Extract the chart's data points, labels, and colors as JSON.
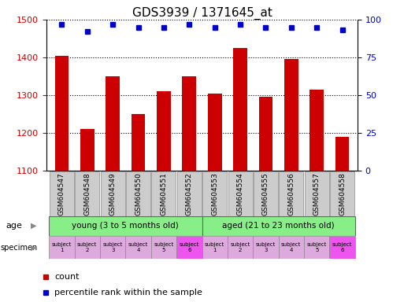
{
  "title": "GDS3939 / 1371645_at",
  "samples": [
    "GSM604547",
    "GSM604548",
    "GSM604549",
    "GSM604550",
    "GSM604551",
    "GSM604552",
    "GSM604553",
    "GSM604554",
    "GSM604555",
    "GSM604556",
    "GSM604557",
    "GSM604558"
  ],
  "counts": [
    1405,
    1210,
    1350,
    1250,
    1310,
    1350,
    1305,
    1425,
    1295,
    1395,
    1315,
    1190
  ],
  "percentiles": [
    97,
    92,
    97,
    95,
    95,
    97,
    95,
    97,
    95,
    95,
    95,
    93
  ],
  "ylim_left": [
    1100,
    1500
  ],
  "ylim_right": [
    0,
    100
  ],
  "yticks_left": [
    1100,
    1200,
    1300,
    1400,
    1500
  ],
  "yticks_right": [
    0,
    25,
    50,
    75,
    100
  ],
  "bar_color": "#cc0000",
  "dot_color": "#0000cc",
  "age_labels": [
    "young (3 to 5 months old)",
    "aged (21 to 23 months old)"
  ],
  "age_color": "#88ee88",
  "specimen_colors": [
    "#ddaadd",
    "#ddaadd",
    "#ddaadd",
    "#ddaadd",
    "#ddaadd",
    "#ee55ee",
    "#ddaadd",
    "#ddaadd",
    "#ddaadd",
    "#ddaadd",
    "#ddaadd",
    "#ee55ee"
  ],
  "specimen_labels": [
    "subject\n1",
    "subject\n2",
    "subject\n3",
    "subject\n4",
    "subject\n5",
    "subject\n6",
    "subject\n1",
    "subject\n2",
    "subject\n3",
    "subject\n4",
    "subject\n5",
    "subject\n6"
  ],
  "sample_bg_color": "#cccccc",
  "grid_color": "#000000",
  "bg_color": "#ffffff",
  "title_fontsize": 11,
  "tick_label_color_left": "#cc0000",
  "tick_label_color_right": "#0000cc"
}
